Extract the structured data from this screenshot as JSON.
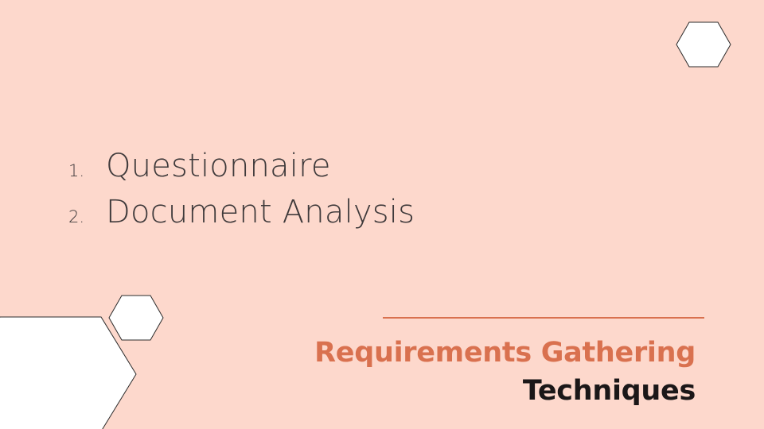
{
  "colors": {
    "background": "#fdd8cc",
    "accent": "#d9714f",
    "body_text": "#3f3a3b",
    "title_dark": "#1b1718",
    "shape_fill": "#ffffff",
    "shape_stroke": "#2b2b2b"
  },
  "content": {
    "items": [
      {
        "number": "1.",
        "label": "Questionnaire"
      },
      {
        "number": "2.",
        "label": "Document Analysis"
      }
    ]
  },
  "title": {
    "line1": "Requirements Gathering",
    "line2": "Techniques"
  },
  "decorations": {
    "icons": [
      "hexagon-icon",
      "hexagon-icon",
      "hexagon-icon"
    ]
  }
}
